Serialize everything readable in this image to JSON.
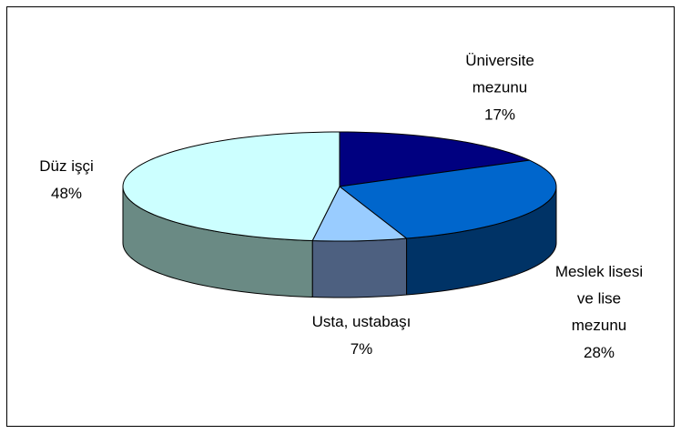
{
  "chart_data": {
    "type": "pie3d",
    "categories": [
      "Üniversite\nmezunu",
      "Meslek lisesi\nve lise\nmezunu",
      "Usta, ustabaşı",
      "Düz işçi"
    ],
    "values": [
      17,
      28,
      7,
      48
    ],
    "value_labels": [
      "17%",
      "28%",
      "7%",
      "48%"
    ],
    "colors": [
      "#000080",
      "#0066cc",
      "#99ccff",
      "#ccffff"
    ],
    "side_colors": [
      "#00004d",
      "#003366",
      "#4d6080",
      "#6a8a84"
    ]
  }
}
